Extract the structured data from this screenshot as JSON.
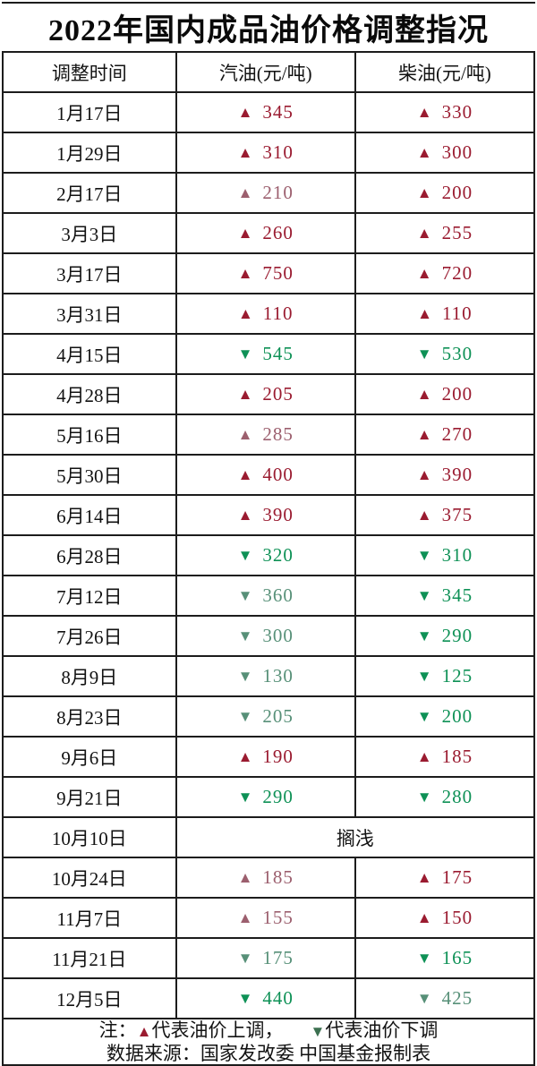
{
  "title": "2022年国内成品油价格调整指况",
  "columns": [
    "调整时间",
    "汽油(元/吨)",
    "柴油(元/吨)"
  ],
  "symbols": {
    "up": "▲",
    "down": "▼"
  },
  "colors": {
    "up": "#9a1b30",
    "up_muted": "#9c5f6e",
    "down": "#0e9156",
    "down_muted": "#579078",
    "note_up": "#9a1b30",
    "note_down": "#3c7050"
  },
  "rows": [
    {
      "date": "1月17日",
      "gasoline": {
        "dir": "up",
        "value": "345",
        "tone": "bright"
      },
      "diesel": {
        "dir": "up",
        "value": "330",
        "tone": "bright"
      }
    },
    {
      "date": "1月29日",
      "gasoline": {
        "dir": "up",
        "value": "310",
        "tone": "bright"
      },
      "diesel": {
        "dir": "up",
        "value": "300",
        "tone": "bright"
      }
    },
    {
      "date": "2月17日",
      "gasoline": {
        "dir": "up",
        "value": "210",
        "tone": "muted"
      },
      "diesel": {
        "dir": "up",
        "value": "200",
        "tone": "bright"
      }
    },
    {
      "date": "3月3日",
      "gasoline": {
        "dir": "up",
        "value": "260",
        "tone": "bright"
      },
      "diesel": {
        "dir": "up",
        "value": "255",
        "tone": "bright"
      }
    },
    {
      "date": "3月17日",
      "gasoline": {
        "dir": "up",
        "value": "750",
        "tone": "bright"
      },
      "diesel": {
        "dir": "up",
        "value": "720",
        "tone": "bright"
      }
    },
    {
      "date": "3月31日",
      "gasoline": {
        "dir": "up",
        "value": "110",
        "tone": "bright"
      },
      "diesel": {
        "dir": "up",
        "value": "110",
        "tone": "bright"
      }
    },
    {
      "date": "4月15日",
      "gasoline": {
        "dir": "down",
        "value": "545",
        "tone": "bright"
      },
      "diesel": {
        "dir": "down",
        "value": "530",
        "tone": "bright"
      }
    },
    {
      "date": "4月28日",
      "gasoline": {
        "dir": "up",
        "value": "205",
        "tone": "bright"
      },
      "diesel": {
        "dir": "up",
        "value": "200",
        "tone": "bright"
      }
    },
    {
      "date": "5月16日",
      "gasoline": {
        "dir": "up",
        "value": "285",
        "tone": "muted"
      },
      "diesel": {
        "dir": "up",
        "value": "270",
        "tone": "bright"
      }
    },
    {
      "date": "5月30日",
      "gasoline": {
        "dir": "up",
        "value": "400",
        "tone": "bright"
      },
      "diesel": {
        "dir": "up",
        "value": "390",
        "tone": "bright"
      }
    },
    {
      "date": "6月14日",
      "gasoline": {
        "dir": "up",
        "value": "390",
        "tone": "bright"
      },
      "diesel": {
        "dir": "up",
        "value": "375",
        "tone": "bright"
      }
    },
    {
      "date": "6月28日",
      "gasoline": {
        "dir": "down",
        "value": "320",
        "tone": "bright"
      },
      "diesel": {
        "dir": "down",
        "value": "310",
        "tone": "bright"
      }
    },
    {
      "date": "7月12日",
      "gasoline": {
        "dir": "down",
        "value": "360",
        "tone": "muted"
      },
      "diesel": {
        "dir": "down",
        "value": "345",
        "tone": "bright"
      }
    },
    {
      "date": "7月26日",
      "gasoline": {
        "dir": "down",
        "value": "300",
        "tone": "muted"
      },
      "diesel": {
        "dir": "down",
        "value": "290",
        "tone": "bright"
      }
    },
    {
      "date": "8月9日",
      "gasoline": {
        "dir": "down",
        "value": "130",
        "tone": "muted"
      },
      "diesel": {
        "dir": "down",
        "value": "125",
        "tone": "bright"
      }
    },
    {
      "date": "8月23日",
      "gasoline": {
        "dir": "down",
        "value": "205",
        "tone": "muted"
      },
      "diesel": {
        "dir": "down",
        "value": "200",
        "tone": "bright"
      }
    },
    {
      "date": "9月6日",
      "gasoline": {
        "dir": "up",
        "value": "190",
        "tone": "bright"
      },
      "diesel": {
        "dir": "up",
        "value": "185",
        "tone": "bright"
      }
    },
    {
      "date": "9月21日",
      "gasoline": {
        "dir": "down",
        "value": "290",
        "tone": "bright"
      },
      "diesel": {
        "dir": "down",
        "value": "280",
        "tone": "bright"
      }
    },
    {
      "date": "10月10日",
      "merged": "搁浅"
    },
    {
      "date": "10月24日",
      "gasoline": {
        "dir": "up",
        "value": "185",
        "tone": "muted"
      },
      "diesel": {
        "dir": "up",
        "value": "175",
        "tone": "bright"
      }
    },
    {
      "date": "11月7日",
      "gasoline": {
        "dir": "up",
        "value": "155",
        "tone": "muted"
      },
      "diesel": {
        "dir": "up",
        "value": "150",
        "tone": "bright"
      }
    },
    {
      "date": "11月21日",
      "gasoline": {
        "dir": "down",
        "value": "175",
        "tone": "muted"
      },
      "diesel": {
        "dir": "down",
        "value": "165",
        "tone": "bright"
      }
    },
    {
      "date": "12月5日",
      "gasoline": {
        "dir": "down",
        "value": "440",
        "tone": "bright"
      },
      "diesel": {
        "dir": "down",
        "value": "425",
        "tone": "muted"
      }
    }
  ],
  "notes": {
    "prefix": "注：",
    "up_symbol": "▲",
    "up_text": "代表油价上调，",
    "down_symbol": "▼",
    "down_text": "代表油价下调",
    "source": "数据来源：国家发改委  中国基金报制表"
  },
  "chart_data": {
    "type": "table",
    "title": "2022年国内成品油价格调整指况",
    "columns": [
      "调整时间",
      "汽油(元/吨)",
      "柴油(元/吨)"
    ],
    "value_semantics": "positive = price increase (▲), negative = price decrease (▼)",
    "rows": [
      [
        "1月17日",
        345,
        330
      ],
      [
        "1月29日",
        310,
        300
      ],
      [
        "2月17日",
        210,
        200
      ],
      [
        "3月3日",
        260,
        255
      ],
      [
        "3月17日",
        750,
        720
      ],
      [
        "3月31日",
        110,
        110
      ],
      [
        "4月15日",
        -545,
        -530
      ],
      [
        "4月28日",
        205,
        200
      ],
      [
        "5月16日",
        285,
        270
      ],
      [
        "5月30日",
        400,
        390
      ],
      [
        "6月14日",
        390,
        375
      ],
      [
        "6月28日",
        -320,
        -310
      ],
      [
        "7月12日",
        -360,
        -345
      ],
      [
        "7月26日",
        -300,
        -290
      ],
      [
        "8月9日",
        -130,
        -125
      ],
      [
        "8月23日",
        -205,
        -200
      ],
      [
        "9月6日",
        190,
        185
      ],
      [
        "9月21日",
        -290,
        -280
      ],
      [
        "10月10日",
        "搁浅",
        "搁浅"
      ],
      [
        "10月24日",
        185,
        175
      ],
      [
        "11月7日",
        155,
        150
      ],
      [
        "11月21日",
        -175,
        -165
      ],
      [
        "12月5日",
        -440,
        -425
      ]
    ],
    "notes": [
      "注：▲代表油价上调， ▼代表油价下调",
      "数据来源：国家发改委 中国基金报制表"
    ]
  }
}
